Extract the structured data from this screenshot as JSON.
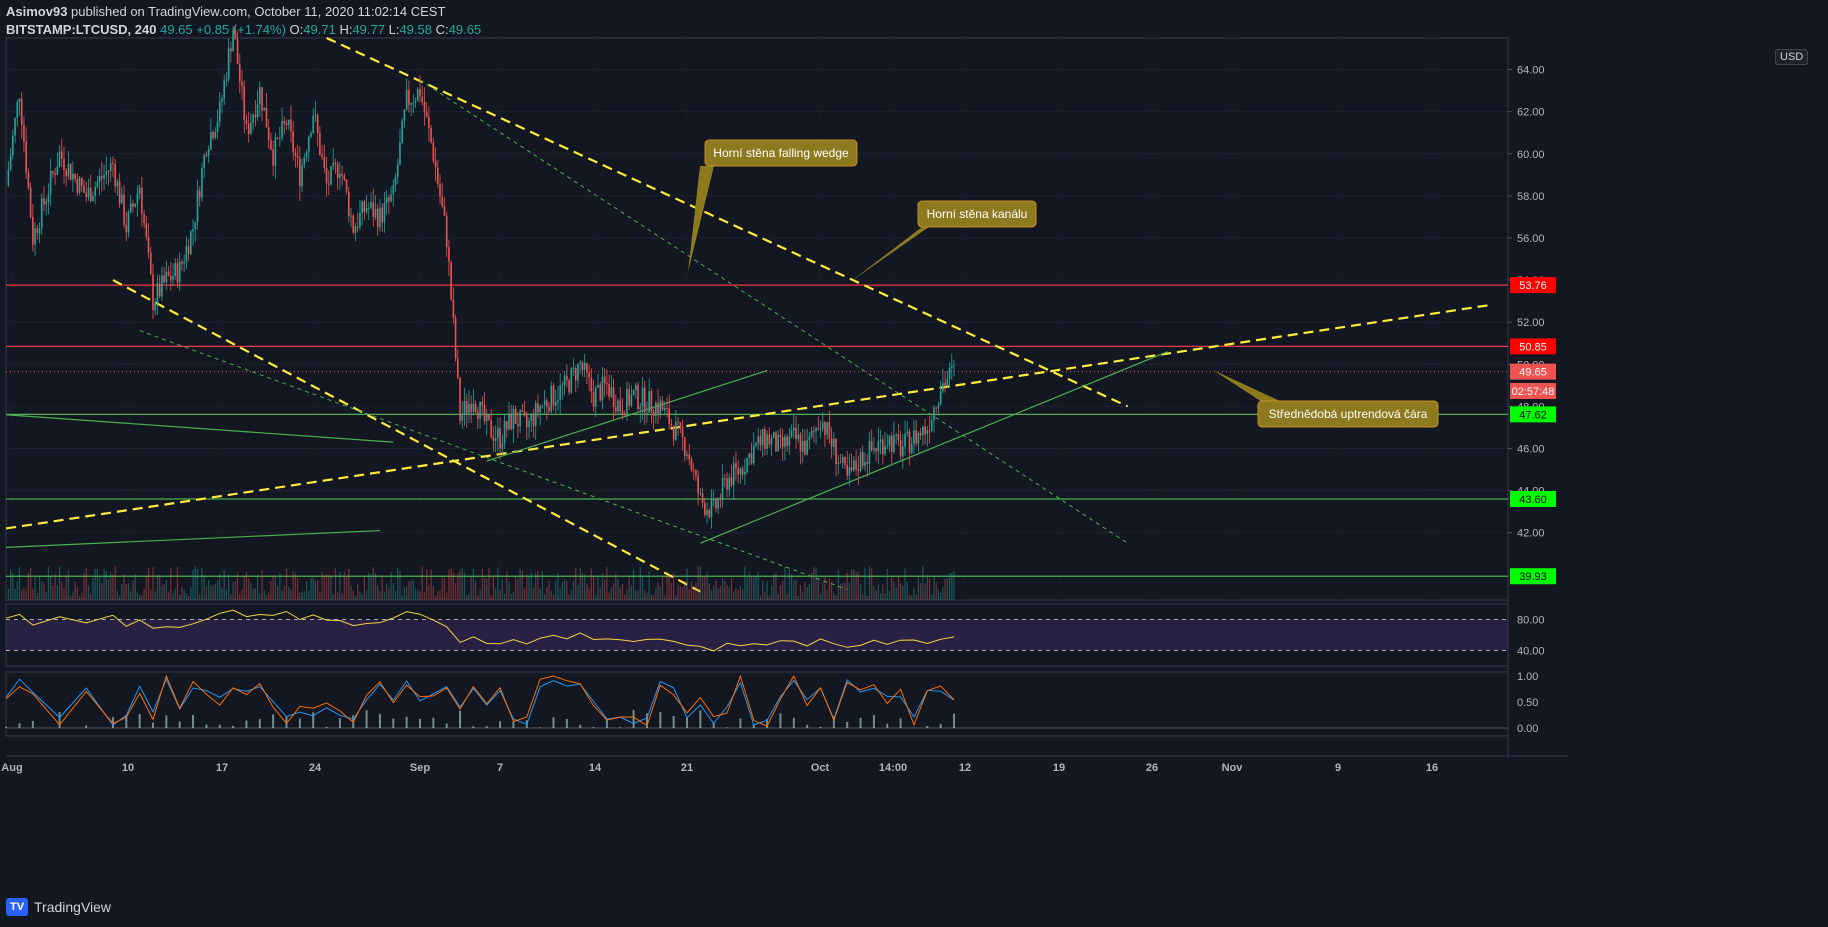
{
  "header": {
    "author": "Asimov93",
    "published_text": "published on TradingView.com, October 11, 2020 11:02:14 CEST",
    "symbol": "BITSTAMP:LTCUSD, 240",
    "last": "49.65",
    "change": "+0.85 (+1.74%)",
    "o_label": "O:",
    "o_value": "49.71",
    "h_label": "H:",
    "h_value": "49.77",
    "l_label": "L:",
    "l_value": "49.58",
    "c_label": "C:",
    "c_value": "49.65"
  },
  "brand": {
    "name": "TradingView",
    "logo_text": "TV"
  },
  "currency_button": "USD",
  "chart_data": {
    "type": "candlestick",
    "symbol": "BITSTAMP:LTCUSD",
    "timeframe": "240",
    "ylim": [
      38.8,
      65.5
    ],
    "y_ticks": [
      "64.00",
      "62.00",
      "60.00",
      "58.00",
      "56.00",
      "54.00",
      "52.00",
      "50.00",
      "48.00",
      "46.00",
      "44.00",
      "42.00"
    ],
    "x_ticks": [
      "Aug",
      "10",
      "17",
      "24",
      "Sep",
      "7",
      "14",
      "21",
      "Oct",
      "14:00",
      "12",
      "19",
      "26",
      "Nov",
      "9",
      "16"
    ],
    "price_labels": [
      {
        "value": 53.76,
        "text": "53.76",
        "color": "#ff0000"
      },
      {
        "value": 50.85,
        "text": "50.85",
        "color": "#ff0000"
      },
      {
        "value": 49.65,
        "text": "49.65",
        "color": "#ef5350"
      },
      {
        "value": 48.73,
        "text": "02:57:48",
        "color": "#ef5350"
      },
      {
        "value": 47.62,
        "text": "47.62",
        "color": "#00ff00"
      },
      {
        "value": 43.6,
        "text": "43.60",
        "color": "#00ff00"
      },
      {
        "value": 39.93,
        "text": "39.93",
        "color": "#00ff00"
      }
    ],
    "horizontal_levels": [
      {
        "value": 53.76,
        "color": "#f23645"
      },
      {
        "value": 50.85,
        "color": "#f23645"
      },
      {
        "value": 47.62,
        "color": "#4caf50"
      },
      {
        "value": 43.6,
        "color": "#4caf50"
      },
      {
        "value": 39.93,
        "color": "#4caf50"
      }
    ],
    "price_path": [
      {
        "x": "Aug 1",
        "y": 58.5
      },
      {
        "x": "Aug 2",
        "y": 63.0
      },
      {
        "x": "Aug 3",
        "y": 56.0
      },
      {
        "x": "Aug 5",
        "y": 60.0
      },
      {
        "x": "Aug 7",
        "y": 58.0
      },
      {
        "x": "Aug 9",
        "y": 59.5
      },
      {
        "x": "Aug 10",
        "y": 56.5
      },
      {
        "x": "Aug 11",
        "y": 58.5
      },
      {
        "x": "Aug 12",
        "y": 53.0
      },
      {
        "x": "Aug 13",
        "y": 54.0
      },
      {
        "x": "Aug 14",
        "y": 54.5
      },
      {
        "x": "Aug 15",
        "y": 56.5
      },
      {
        "x": "Aug 16",
        "y": 60.5
      },
      {
        "x": "Aug 17",
        "y": 62.0
      },
      {
        "x": "Aug 18",
        "y": 66.0
      },
      {
        "x": "Aug 19",
        "y": 61.0
      },
      {
        "x": "Aug 20",
        "y": 63.0
      },
      {
        "x": "Aug 21",
        "y": 60.0
      },
      {
        "x": "Aug 22",
        "y": 61.5
      },
      {
        "x": "Aug 23",
        "y": 59.0
      },
      {
        "x": "Aug 24",
        "y": 62.0
      },
      {
        "x": "Aug 25",
        "y": 58.5
      },
      {
        "x": "Aug 26",
        "y": 59.5
      },
      {
        "x": "Aug 27",
        "y": 56.5
      },
      {
        "x": "Aug 28",
        "y": 57.5
      },
      {
        "x": "Aug 29",
        "y": 57.0
      },
      {
        "x": "Aug 30",
        "y": 58.0
      },
      {
        "x": "Aug 31",
        "y": 62.5
      },
      {
        "x": "Sep 1",
        "y": 63.0
      },
      {
        "x": "Sep 2",
        "y": 60.0
      },
      {
        "x": "Sep 3",
        "y": 56.0
      },
      {
        "x": "Sep 4",
        "y": 47.5
      },
      {
        "x": "Sep 5",
        "y": 48.5
      },
      {
        "x": "Sep 6",
        "y": 47.0
      },
      {
        "x": "Sep 7",
        "y": 46.5
      },
      {
        "x": "Sep 8",
        "y": 47.5
      },
      {
        "x": "Sep 9",
        "y": 47.0
      },
      {
        "x": "Sep 10",
        "y": 48.0
      },
      {
        "x": "Sep 11",
        "y": 48.5
      },
      {
        "x": "Sep 12",
        "y": 49.0
      },
      {
        "x": "Sep 13",
        "y": 50.0
      },
      {
        "x": "Sep 14",
        "y": 48.5
      },
      {
        "x": "Sep 15",
        "y": 49.0
      },
      {
        "x": "Sep 16",
        "y": 48.0
      },
      {
        "x": "Sep 17",
        "y": 48.5
      },
      {
        "x": "Sep 18",
        "y": 48.2
      },
      {
        "x": "Sep 19",
        "y": 48.0
      },
      {
        "x": "Sep 20",
        "y": 47.0
      },
      {
        "x": "Sep 21",
        "y": 46.0
      },
      {
        "x": "Sep 22",
        "y": 43.5
      },
      {
        "x": "Sep 23",
        "y": 43.0
      },
      {
        "x": "Sep 24",
        "y": 44.5
      },
      {
        "x": "Sep 25",
        "y": 45.0
      },
      {
        "x": "Sep 26",
        "y": 46.0
      },
      {
        "x": "Sep 27",
        "y": 46.5
      },
      {
        "x": "Sep 28",
        "y": 46.0
      },
      {
        "x": "Sep 29",
        "y": 46.5
      },
      {
        "x": "Sep 30",
        "y": 46.0
      },
      {
        "x": "Oct 1",
        "y": 47.5
      },
      {
        "x": "Oct 2",
        "y": 46.0
      },
      {
        "x": "Oct 3",
        "y": 44.5
      },
      {
        "x": "Oct 4",
        "y": 45.5
      },
      {
        "x": "Oct 5",
        "y": 46.0
      },
      {
        "x": "Oct 6",
        "y": 46.5
      },
      {
        "x": "Oct 7",
        "y": 46.0
      },
      {
        "x": "Oct 8",
        "y": 46.5
      },
      {
        "x": "Oct 9",
        "y": 47.0
      },
      {
        "x": "Oct 10",
        "y": 49.0
      },
      {
        "x": "Oct 11",
        "y": 49.65
      }
    ],
    "annotations": [
      {
        "text": "Horní stěna falling wedge"
      },
      {
        "text": "Horní stěna kanálu"
      },
      {
        "text": "Střednědobá uptrendová čára"
      }
    ],
    "indicators": {
      "rsi": {
        "ticks": [
          "80.00",
          "40.00"
        ],
        "upper": 80,
        "lower": 40
      },
      "stoch": {
        "ticks": [
          "1.00",
          "0.50",
          "0.00"
        ]
      }
    },
    "colors": {
      "up": "#26a69a",
      "down": "#ef5350",
      "trend_yellow": "#ffeb3b",
      "trend_green": "#4caf50",
      "callout": "#8d7a1f",
      "rsi_line": "#f5d442",
      "rsi_band": "#3b2a5e"
    }
  }
}
